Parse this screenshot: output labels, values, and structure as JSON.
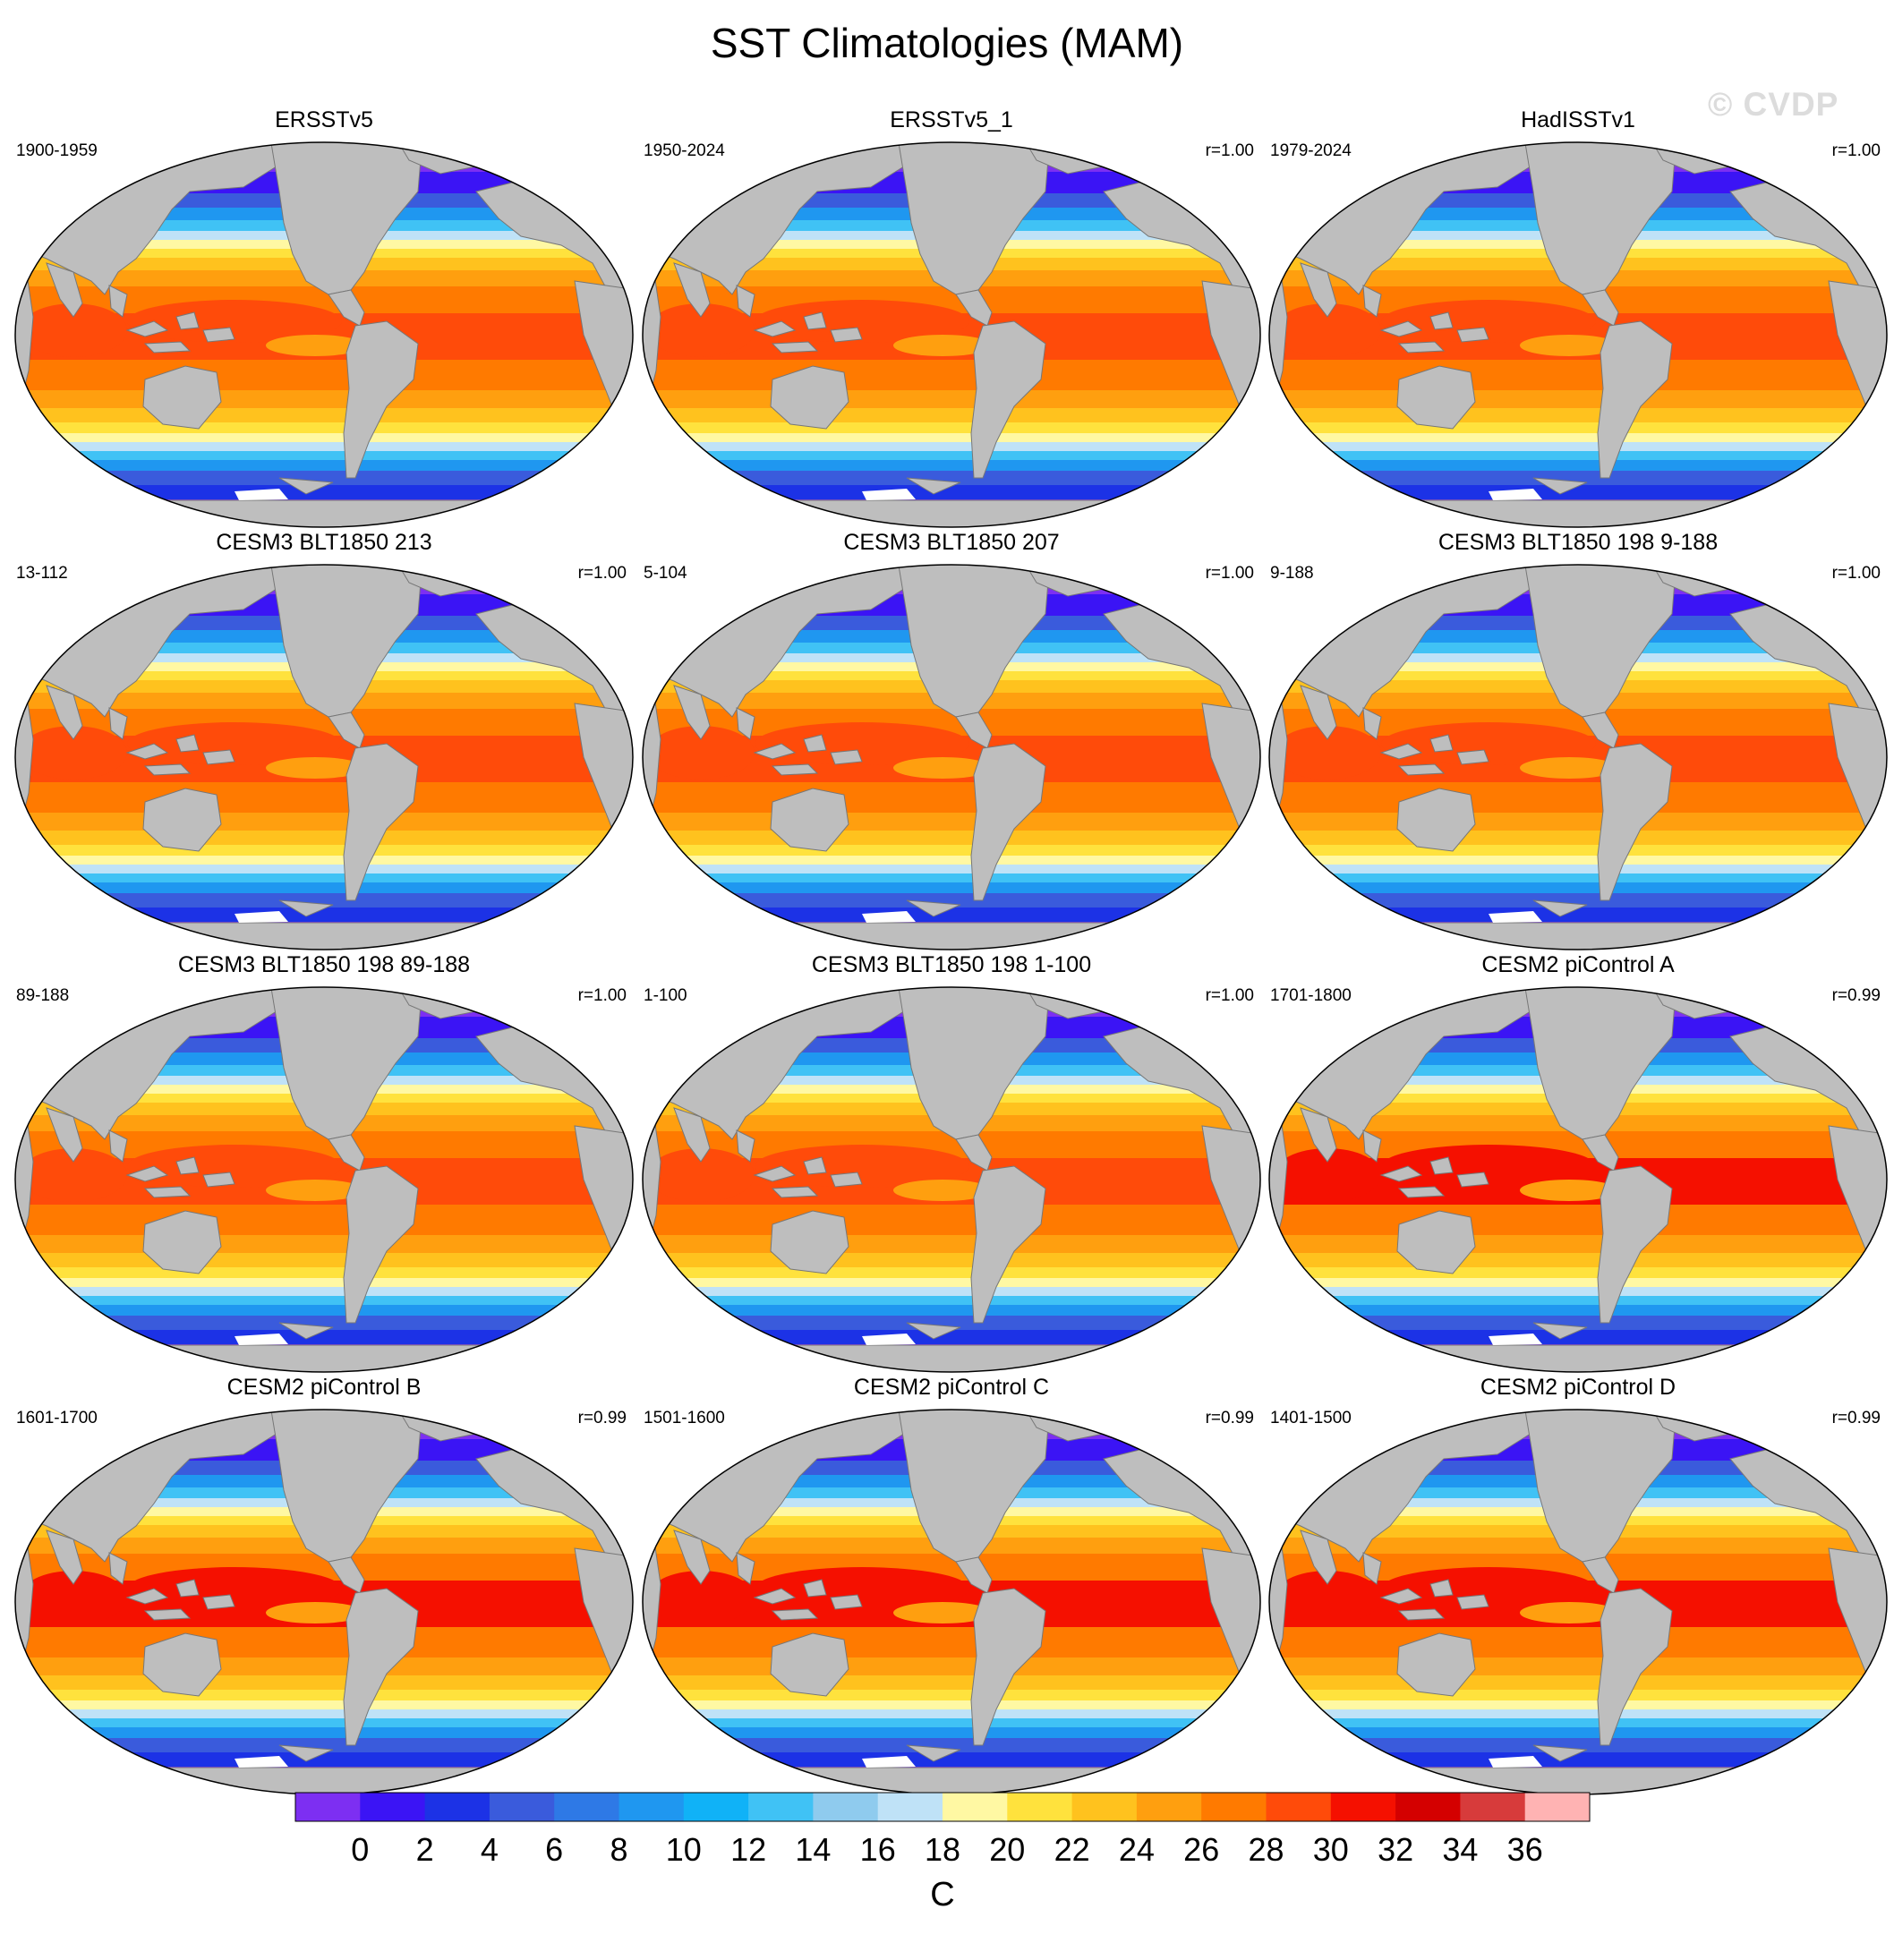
{
  "title": "SST Climatologies (MAM)",
  "watermark": "© CVDP",
  "panels": [
    {
      "title": "ERSSTv5",
      "period": "1900-1959",
      "corr": ""
    },
    {
      "title": "ERSSTv5_1",
      "period": "1950-2024",
      "corr": "r=1.00"
    },
    {
      "title": "HadISSTv1",
      "period": "1979-2024",
      "corr": "r=1.00"
    },
    {
      "title": "CESM3 BLT1850 213",
      "period": "13-112",
      "corr": "r=1.00"
    },
    {
      "title": "CESM3 BLT1850 207",
      "period": "5-104",
      "corr": "r=1.00"
    },
    {
      "title": "CESM3 BLT1850 198 9-188",
      "period": "9-188",
      "corr": "r=1.00"
    },
    {
      "title": "CESM3 BLT1850 198 89-188",
      "period": "89-188",
      "corr": "r=1.00"
    },
    {
      "title": "CESM3 BLT1850 198 1-100",
      "period": "1-100",
      "corr": "r=1.00"
    },
    {
      "title": "CESM2 piControl A",
      "period": "1701-1800",
      "corr": "r=0.99"
    },
    {
      "title": "CESM2 piControl B",
      "period": "1601-1700",
      "corr": "r=0.99"
    },
    {
      "title": "CESM2 piControl C",
      "period": "1501-1600",
      "corr": "r=0.99"
    },
    {
      "title": "CESM2 piControl D",
      "period": "1401-1500",
      "corr": "r=0.99"
    }
  ],
  "colorbar": {
    "unit": "C",
    "tick_labels": [
      "0",
      "2",
      "4",
      "6",
      "8",
      "10",
      "12",
      "14",
      "16",
      "18",
      "20",
      "22",
      "24",
      "26",
      "28",
      "30",
      "32",
      "34",
      "36"
    ],
    "colors": [
      "#7d2ff2",
      "#3b14f5",
      "#1c32e6",
      "#3a5bdc",
      "#2e79e6",
      "#1f97f0",
      "#10b2f7",
      "#40c2f5",
      "#8fcbee",
      "#bfe2f7",
      "#fff8a3",
      "#ffe23d",
      "#ffc21e",
      "#ff9f0f",
      "#ff7a00",
      "#ff4b0a",
      "#f51000",
      "#d40000",
      "#d73b3b",
      "#ffb3b3"
    ],
    "land_color": "#bebebe"
  }
}
